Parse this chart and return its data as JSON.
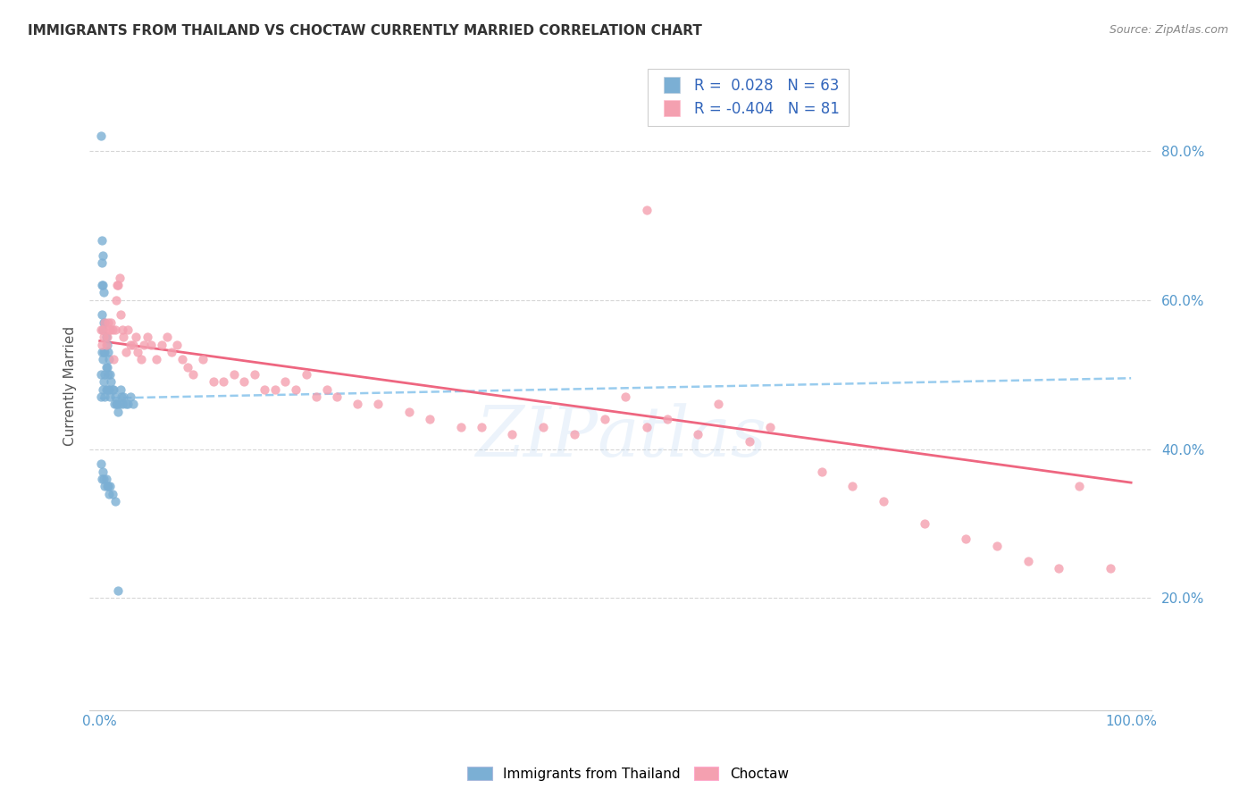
{
  "title": "IMMIGRANTS FROM THAILAND VS CHOCTAW CURRENTLY MARRIED CORRELATION CHART",
  "source": "Source: ZipAtlas.com",
  "ylabel": "Currently Married",
  "legend_label1": "Immigrants from Thailand",
  "legend_label2": "Choctaw",
  "R1": 0.028,
  "N1": 63,
  "R2": -0.404,
  "N2": 81,
  "color1": "#7BAFD4",
  "color2": "#F4A0B0",
  "trendline1_color": "#99CCEE",
  "trendline2_color": "#EE6680",
  "background": "#FFFFFF",
  "scatter1_x": [
    0.001,
    0.001,
    0.001,
    0.002,
    0.002,
    0.002,
    0.002,
    0.002,
    0.003,
    0.003,
    0.003,
    0.003,
    0.003,
    0.004,
    0.004,
    0.004,
    0.004,
    0.005,
    0.005,
    0.005,
    0.005,
    0.006,
    0.006,
    0.006,
    0.007,
    0.007,
    0.007,
    0.008,
    0.008,
    0.009,
    0.009,
    0.01,
    0.01,
    0.011,
    0.012,
    0.013,
    0.014,
    0.015,
    0.016,
    0.017,
    0.018,
    0.019,
    0.02,
    0.021,
    0.022,
    0.023,
    0.025,
    0.027,
    0.03,
    0.032,
    0.001,
    0.002,
    0.003,
    0.004,
    0.005,
    0.006,
    0.007,
    0.008,
    0.009,
    0.01,
    0.012,
    0.015,
    0.018
  ],
  "scatter1_y": [
    0.82,
    0.5,
    0.47,
    0.68,
    0.65,
    0.62,
    0.58,
    0.53,
    0.66,
    0.62,
    0.56,
    0.52,
    0.48,
    0.61,
    0.57,
    0.53,
    0.49,
    0.57,
    0.53,
    0.5,
    0.47,
    0.55,
    0.51,
    0.48,
    0.54,
    0.51,
    0.48,
    0.53,
    0.5,
    0.52,
    0.48,
    0.5,
    0.47,
    0.49,
    0.48,
    0.48,
    0.46,
    0.47,
    0.46,
    0.46,
    0.45,
    0.46,
    0.48,
    0.47,
    0.46,
    0.47,
    0.46,
    0.46,
    0.47,
    0.46,
    0.38,
    0.36,
    0.37,
    0.36,
    0.35,
    0.36,
    0.35,
    0.35,
    0.34,
    0.35,
    0.34,
    0.33,
    0.21
  ],
  "scatter2_x": [
    0.001,
    0.002,
    0.003,
    0.004,
    0.005,
    0.006,
    0.007,
    0.008,
    0.009,
    0.01,
    0.011,
    0.012,
    0.013,
    0.015,
    0.016,
    0.017,
    0.018,
    0.019,
    0.02,
    0.022,
    0.023,
    0.025,
    0.027,
    0.03,
    0.032,
    0.035,
    0.037,
    0.04,
    0.043,
    0.046,
    0.05,
    0.055,
    0.06,
    0.065,
    0.07,
    0.075,
    0.08,
    0.085,
    0.09,
    0.1,
    0.11,
    0.12,
    0.13,
    0.14,
    0.15,
    0.16,
    0.17,
    0.18,
    0.19,
    0.2,
    0.21,
    0.22,
    0.23,
    0.25,
    0.27,
    0.3,
    0.32,
    0.35,
    0.37,
    0.4,
    0.43,
    0.46,
    0.49,
    0.51,
    0.53,
    0.55,
    0.58,
    0.6,
    0.63,
    0.65,
    0.7,
    0.73,
    0.76,
    0.8,
    0.84,
    0.87,
    0.9,
    0.93,
    0.95,
    0.98,
    0.53
  ],
  "scatter2_y": [
    0.56,
    0.54,
    0.56,
    0.55,
    0.57,
    0.54,
    0.55,
    0.57,
    0.56,
    0.56,
    0.57,
    0.56,
    0.52,
    0.56,
    0.6,
    0.62,
    0.62,
    0.63,
    0.58,
    0.56,
    0.55,
    0.53,
    0.56,
    0.54,
    0.54,
    0.55,
    0.53,
    0.52,
    0.54,
    0.55,
    0.54,
    0.52,
    0.54,
    0.55,
    0.53,
    0.54,
    0.52,
    0.51,
    0.5,
    0.52,
    0.49,
    0.49,
    0.5,
    0.49,
    0.5,
    0.48,
    0.48,
    0.49,
    0.48,
    0.5,
    0.47,
    0.48,
    0.47,
    0.46,
    0.46,
    0.45,
    0.44,
    0.43,
    0.43,
    0.42,
    0.43,
    0.42,
    0.44,
    0.47,
    0.43,
    0.44,
    0.42,
    0.46,
    0.41,
    0.43,
    0.37,
    0.35,
    0.33,
    0.3,
    0.28,
    0.27,
    0.25,
    0.24,
    0.35,
    0.24,
    0.72
  ],
  "trendline1_x0": 0.0,
  "trendline1_x1": 1.0,
  "trendline1_y0": 0.468,
  "trendline1_y1": 0.495,
  "trendline2_x0": 0.0,
  "trendline2_x1": 1.0,
  "trendline2_y0": 0.545,
  "trendline2_y1": 0.355,
  "xlim": [
    -0.01,
    1.02
  ],
  "ylim": [
    0.05,
    0.92
  ],
  "yticks": [
    0.2,
    0.4,
    0.6,
    0.8
  ],
  "ytick_labels": [
    "20.0%",
    "40.0%",
    "60.0%",
    "80.0%"
  ],
  "xtick_positions": [
    0.0,
    1.0
  ],
  "xtick_labels": [
    "0.0%",
    "100.0%"
  ]
}
